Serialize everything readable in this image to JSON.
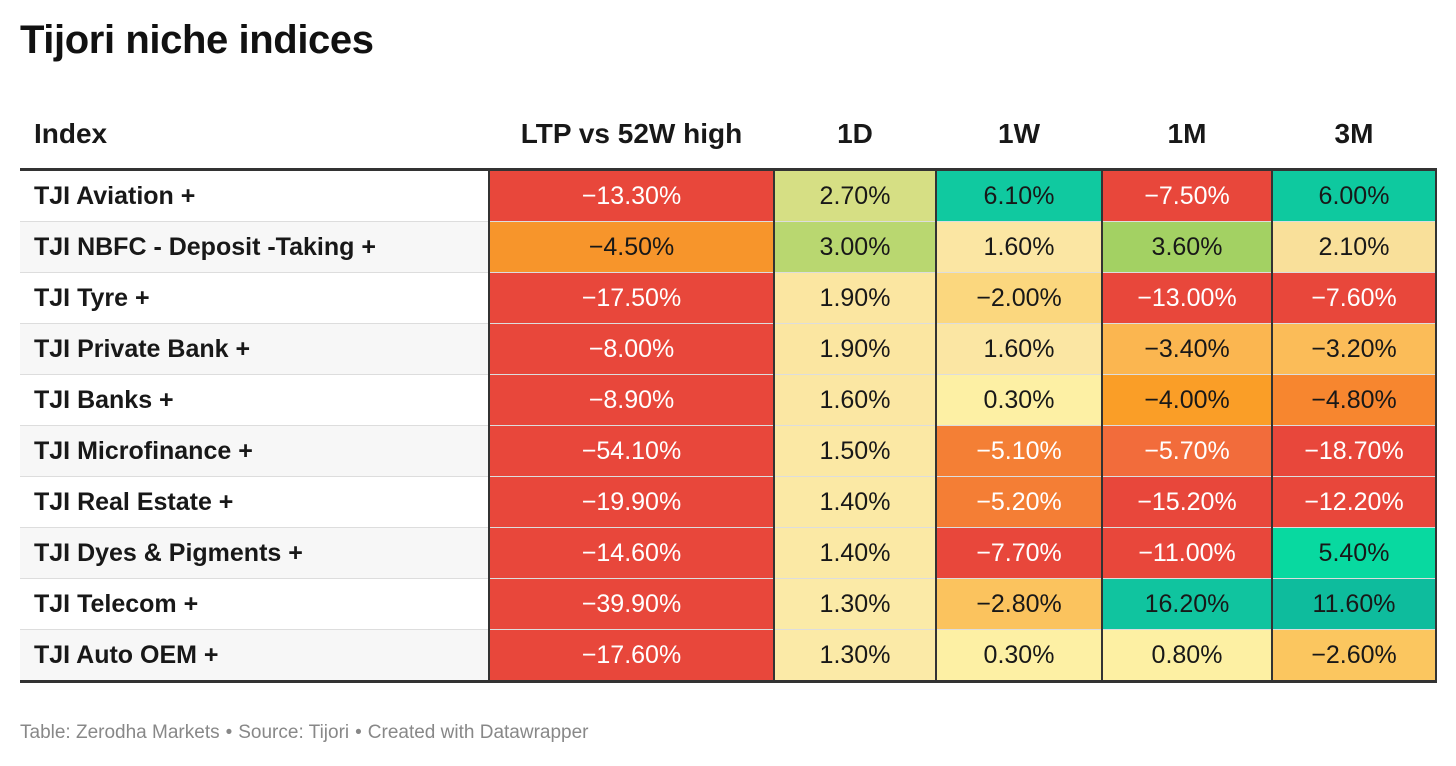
{
  "chart_data": {
    "type": "table",
    "title": "Tijori niche indices",
    "columns": [
      "Index",
      "LTP vs 52W high",
      "1D",
      "1W",
      "1M",
      "3M"
    ],
    "rows": [
      {
        "index": "TJI Aviation +",
        "ltp_vs_52w": "−13.30%",
        "d1": "2.70%",
        "w1": "6.10%",
        "m1": "−7.50%",
        "m3": "6.00%"
      },
      {
        "index": "TJI NBFC - Deposit -Taking +",
        "ltp_vs_52w": "−4.50%",
        "d1": "3.00%",
        "w1": "1.60%",
        "m1": "3.60%",
        "m3": "2.10%"
      },
      {
        "index": "TJI Tyre +",
        "ltp_vs_52w": "−17.50%",
        "d1": "1.90%",
        "w1": "−2.00%",
        "m1": "−13.00%",
        "m3": "−7.60%"
      },
      {
        "index": "TJI Private Bank +",
        "ltp_vs_52w": "−8.00%",
        "d1": "1.90%",
        "w1": "1.60%",
        "m1": "−3.40%",
        "m3": "−3.20%"
      },
      {
        "index": "TJI Banks +",
        "ltp_vs_52w": "−8.90%",
        "d1": "1.60%",
        "w1": "0.30%",
        "m1": "−4.00%",
        "m3": "−4.80%"
      },
      {
        "index": "TJI Microfinance +",
        "ltp_vs_52w": "−54.10%",
        "d1": "1.50%",
        "w1": "−5.10%",
        "m1": "−5.70%",
        "m3": "−18.70%"
      },
      {
        "index": "TJI Real Estate +",
        "ltp_vs_52w": "−19.90%",
        "d1": "1.40%",
        "w1": "−5.20%",
        "m1": "−15.20%",
        "m3": "−12.20%"
      },
      {
        "index": "TJI Dyes & Pigments +",
        "ltp_vs_52w": "−14.60%",
        "d1": "1.40%",
        "w1": "−7.70%",
        "m1": "−11.00%",
        "m3": "5.40%"
      },
      {
        "index": "TJI Telecom +",
        "ltp_vs_52w": "−39.90%",
        "d1": "1.30%",
        "w1": "−2.80%",
        "m1": "16.20%",
        "m3": "11.60%"
      },
      {
        "index": "TJI Auto OEM +",
        "ltp_vs_52w": "−17.60%",
        "d1": "1.30%",
        "w1": "0.30%",
        "m1": "0.80%",
        "m3": "−2.60%"
      }
    ],
    "cell_colors": [
      [
        "#e8473b",
        "#d6df84",
        "#10c9a0",
        "#e8473b",
        "#0ec99f"
      ],
      [
        "#f7952b",
        "#b9d770",
        "#fbe6a3",
        "#a3d163",
        "#f9e09a"
      ],
      [
        "#e8473b",
        "#fbe6a1",
        "#fbd77e",
        "#e8473b",
        "#e8473b"
      ],
      [
        "#e8473b",
        "#fbe6a1",
        "#fbe6a3",
        "#fbb650",
        "#fbbc58"
      ],
      [
        "#e8473b",
        "#fbe7a3",
        "#fdf0a4",
        "#fa9e27",
        "#f7862f"
      ],
      [
        "#e8473b",
        "#fbe8a4",
        "#f47f35",
        "#f26c3b",
        "#e8473b"
      ],
      [
        "#e8473b",
        "#fbe9a5",
        "#f47e35",
        "#e8473b",
        "#e8473b"
      ],
      [
        "#e8473b",
        "#fbe9a5",
        "#e8473b",
        "#e8473b",
        "#08d9a0"
      ],
      [
        "#e8473b",
        "#fbeaa7",
        "#fbc35e",
        "#10c49f",
        "#0ebc9d"
      ],
      [
        "#e8473b",
        "#fbeaa7",
        "#fdf0a4",
        "#fdf0a3",
        "#fbc65f"
      ]
    ],
    "text_on_dark": "#ffffff",
    "text_on_light": "#181818"
  },
  "footer": {
    "table_credit": "Table: Zerodha Markets",
    "source": "Source: Tijori",
    "created_with": "Created with Datawrapper",
    "separator": "•"
  }
}
